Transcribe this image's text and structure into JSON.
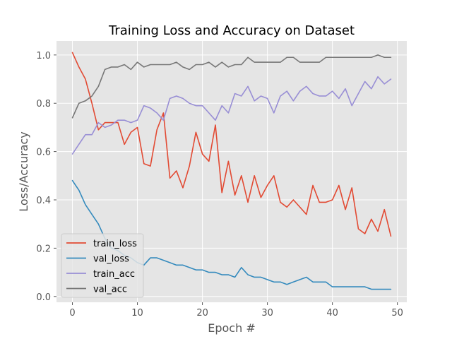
{
  "chart_data": {
    "type": "line",
    "title": "Training Loss and Accuracy on Dataset",
    "xlabel": "Epoch #",
    "ylabel": "Loss/Accuracy",
    "xlim": [
      -2.45,
      51.45
    ],
    "ylim": [
      -0.024,
      1.058
    ],
    "xticks": [
      0,
      10,
      20,
      30,
      40,
      50
    ],
    "yticks": [
      0.0,
      0.2,
      0.4,
      0.6,
      0.8,
      1.0
    ],
    "ytick_labels": [
      "0.0",
      "0.2",
      "0.4",
      "0.6",
      "0.8",
      "1.0"
    ],
    "grid": true,
    "legend_position": "lower-left",
    "x": [
      0,
      1,
      2,
      3,
      4,
      5,
      6,
      7,
      8,
      9,
      10,
      11,
      12,
      13,
      14,
      15,
      16,
      17,
      18,
      19,
      20,
      21,
      22,
      23,
      24,
      25,
      26,
      27,
      28,
      29,
      30,
      31,
      32,
      33,
      34,
      35,
      36,
      37,
      38,
      39,
      40,
      41,
      42,
      43,
      44,
      45,
      46,
      47,
      48,
      49
    ],
    "series": [
      {
        "name": "train_loss",
        "color": "#E24A33",
        "values": [
          1.01,
          0.95,
          0.9,
          0.8,
          0.69,
          0.72,
          0.72,
          0.72,
          0.63,
          0.68,
          0.7,
          0.55,
          0.54,
          0.69,
          0.76,
          0.49,
          0.52,
          0.45,
          0.54,
          0.68,
          0.59,
          0.56,
          0.71,
          0.43,
          0.56,
          0.42,
          0.5,
          0.39,
          0.5,
          0.41,
          0.46,
          0.5,
          0.39,
          0.37,
          0.4,
          0.37,
          0.34,
          0.46,
          0.39,
          0.39,
          0.4,
          0.46,
          0.36,
          0.45,
          0.28,
          0.26,
          0.32,
          0.27,
          0.36,
          0.25
        ]
      },
      {
        "name": "val_loss",
        "color": "#348ABD",
        "values": [
          0.48,
          0.44,
          0.38,
          0.34,
          0.3,
          0.24,
          0.2,
          0.19,
          0.17,
          0.16,
          0.14,
          0.13,
          0.16,
          0.16,
          0.15,
          0.14,
          0.13,
          0.13,
          0.12,
          0.11,
          0.11,
          0.1,
          0.1,
          0.09,
          0.09,
          0.08,
          0.12,
          0.09,
          0.08,
          0.08,
          0.07,
          0.06,
          0.06,
          0.05,
          0.06,
          0.07,
          0.08,
          0.06,
          0.06,
          0.06,
          0.04,
          0.04,
          0.04,
          0.04,
          0.04,
          0.04,
          0.03,
          0.03,
          0.03,
          0.03
        ]
      },
      {
        "name": "train_acc",
        "color": "#988ED5",
        "values": [
          0.59,
          0.63,
          0.67,
          0.67,
          0.72,
          0.7,
          0.71,
          0.73,
          0.73,
          0.72,
          0.73,
          0.79,
          0.78,
          0.76,
          0.73,
          0.82,
          0.83,
          0.82,
          0.8,
          0.79,
          0.79,
          0.76,
          0.73,
          0.79,
          0.76,
          0.84,
          0.83,
          0.87,
          0.81,
          0.83,
          0.82,
          0.76,
          0.83,
          0.85,
          0.81,
          0.85,
          0.87,
          0.84,
          0.83,
          0.83,
          0.85,
          0.82,
          0.86,
          0.79,
          0.84,
          0.89,
          0.86,
          0.91,
          0.88,
          0.9
        ]
      },
      {
        "name": "val_acc",
        "color": "#777777",
        "values": [
          0.74,
          0.8,
          0.81,
          0.83,
          0.87,
          0.94,
          0.95,
          0.95,
          0.96,
          0.94,
          0.97,
          0.95,
          0.96,
          0.96,
          0.96,
          0.96,
          0.97,
          0.95,
          0.94,
          0.96,
          0.96,
          0.97,
          0.95,
          0.97,
          0.95,
          0.96,
          0.96,
          0.99,
          0.97,
          0.97,
          0.97,
          0.97,
          0.97,
          0.99,
          0.99,
          0.97,
          0.97,
          0.97,
          0.97,
          0.99,
          0.99,
          0.99,
          0.99,
          0.99,
          0.99,
          0.99,
          0.99,
          1.0,
          0.99,
          0.99
        ]
      }
    ]
  },
  "colors": {
    "axes_background": "#E5E5E5",
    "grid": "#FFFFFF",
    "tick_text": "#555555",
    "legend_background": "#E5E5E5",
    "legend_border": "#CCCCCC"
  }
}
